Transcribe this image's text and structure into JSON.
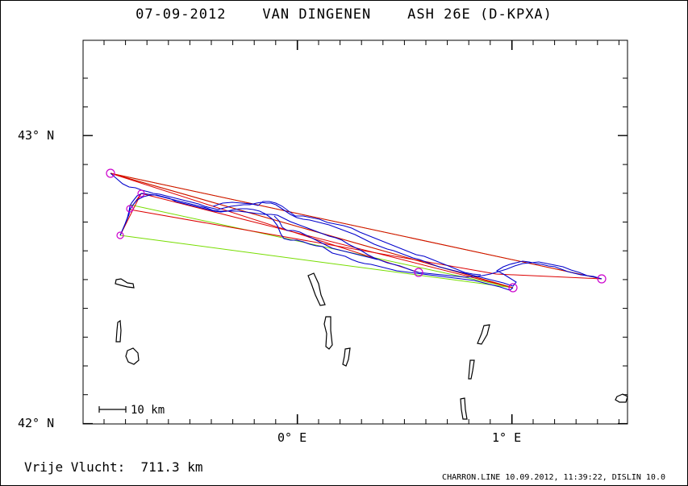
{
  "header": {
    "title": "07-09-2012    VAN DINGENEN    ASH 26E (D-KPXA)"
  },
  "map": {
    "lat_labels": [
      {
        "text": "43° N",
        "lat": 43.0
      },
      {
        "text": "42° N",
        "lat": 42.0
      }
    ],
    "lon_labels": [
      {
        "text": "0° E",
        "lon": 0.0
      },
      {
        "text": "1° E",
        "lon": 1.0
      }
    ],
    "scale_bar_label": "10 km",
    "colors": {
      "track": "#0000cc",
      "task_red": "#dd0000",
      "task_green": "#77dd00",
      "turnpoint": "#cc00cc",
      "coast": "#000000"
    }
  },
  "footer": {
    "distance_label": "Vrije Vlucht:",
    "distance_value": "711.3 km",
    "credits": "CHARRON.LINE 10.09.2012, 11:39:22, DISLIN 10.0"
  }
}
